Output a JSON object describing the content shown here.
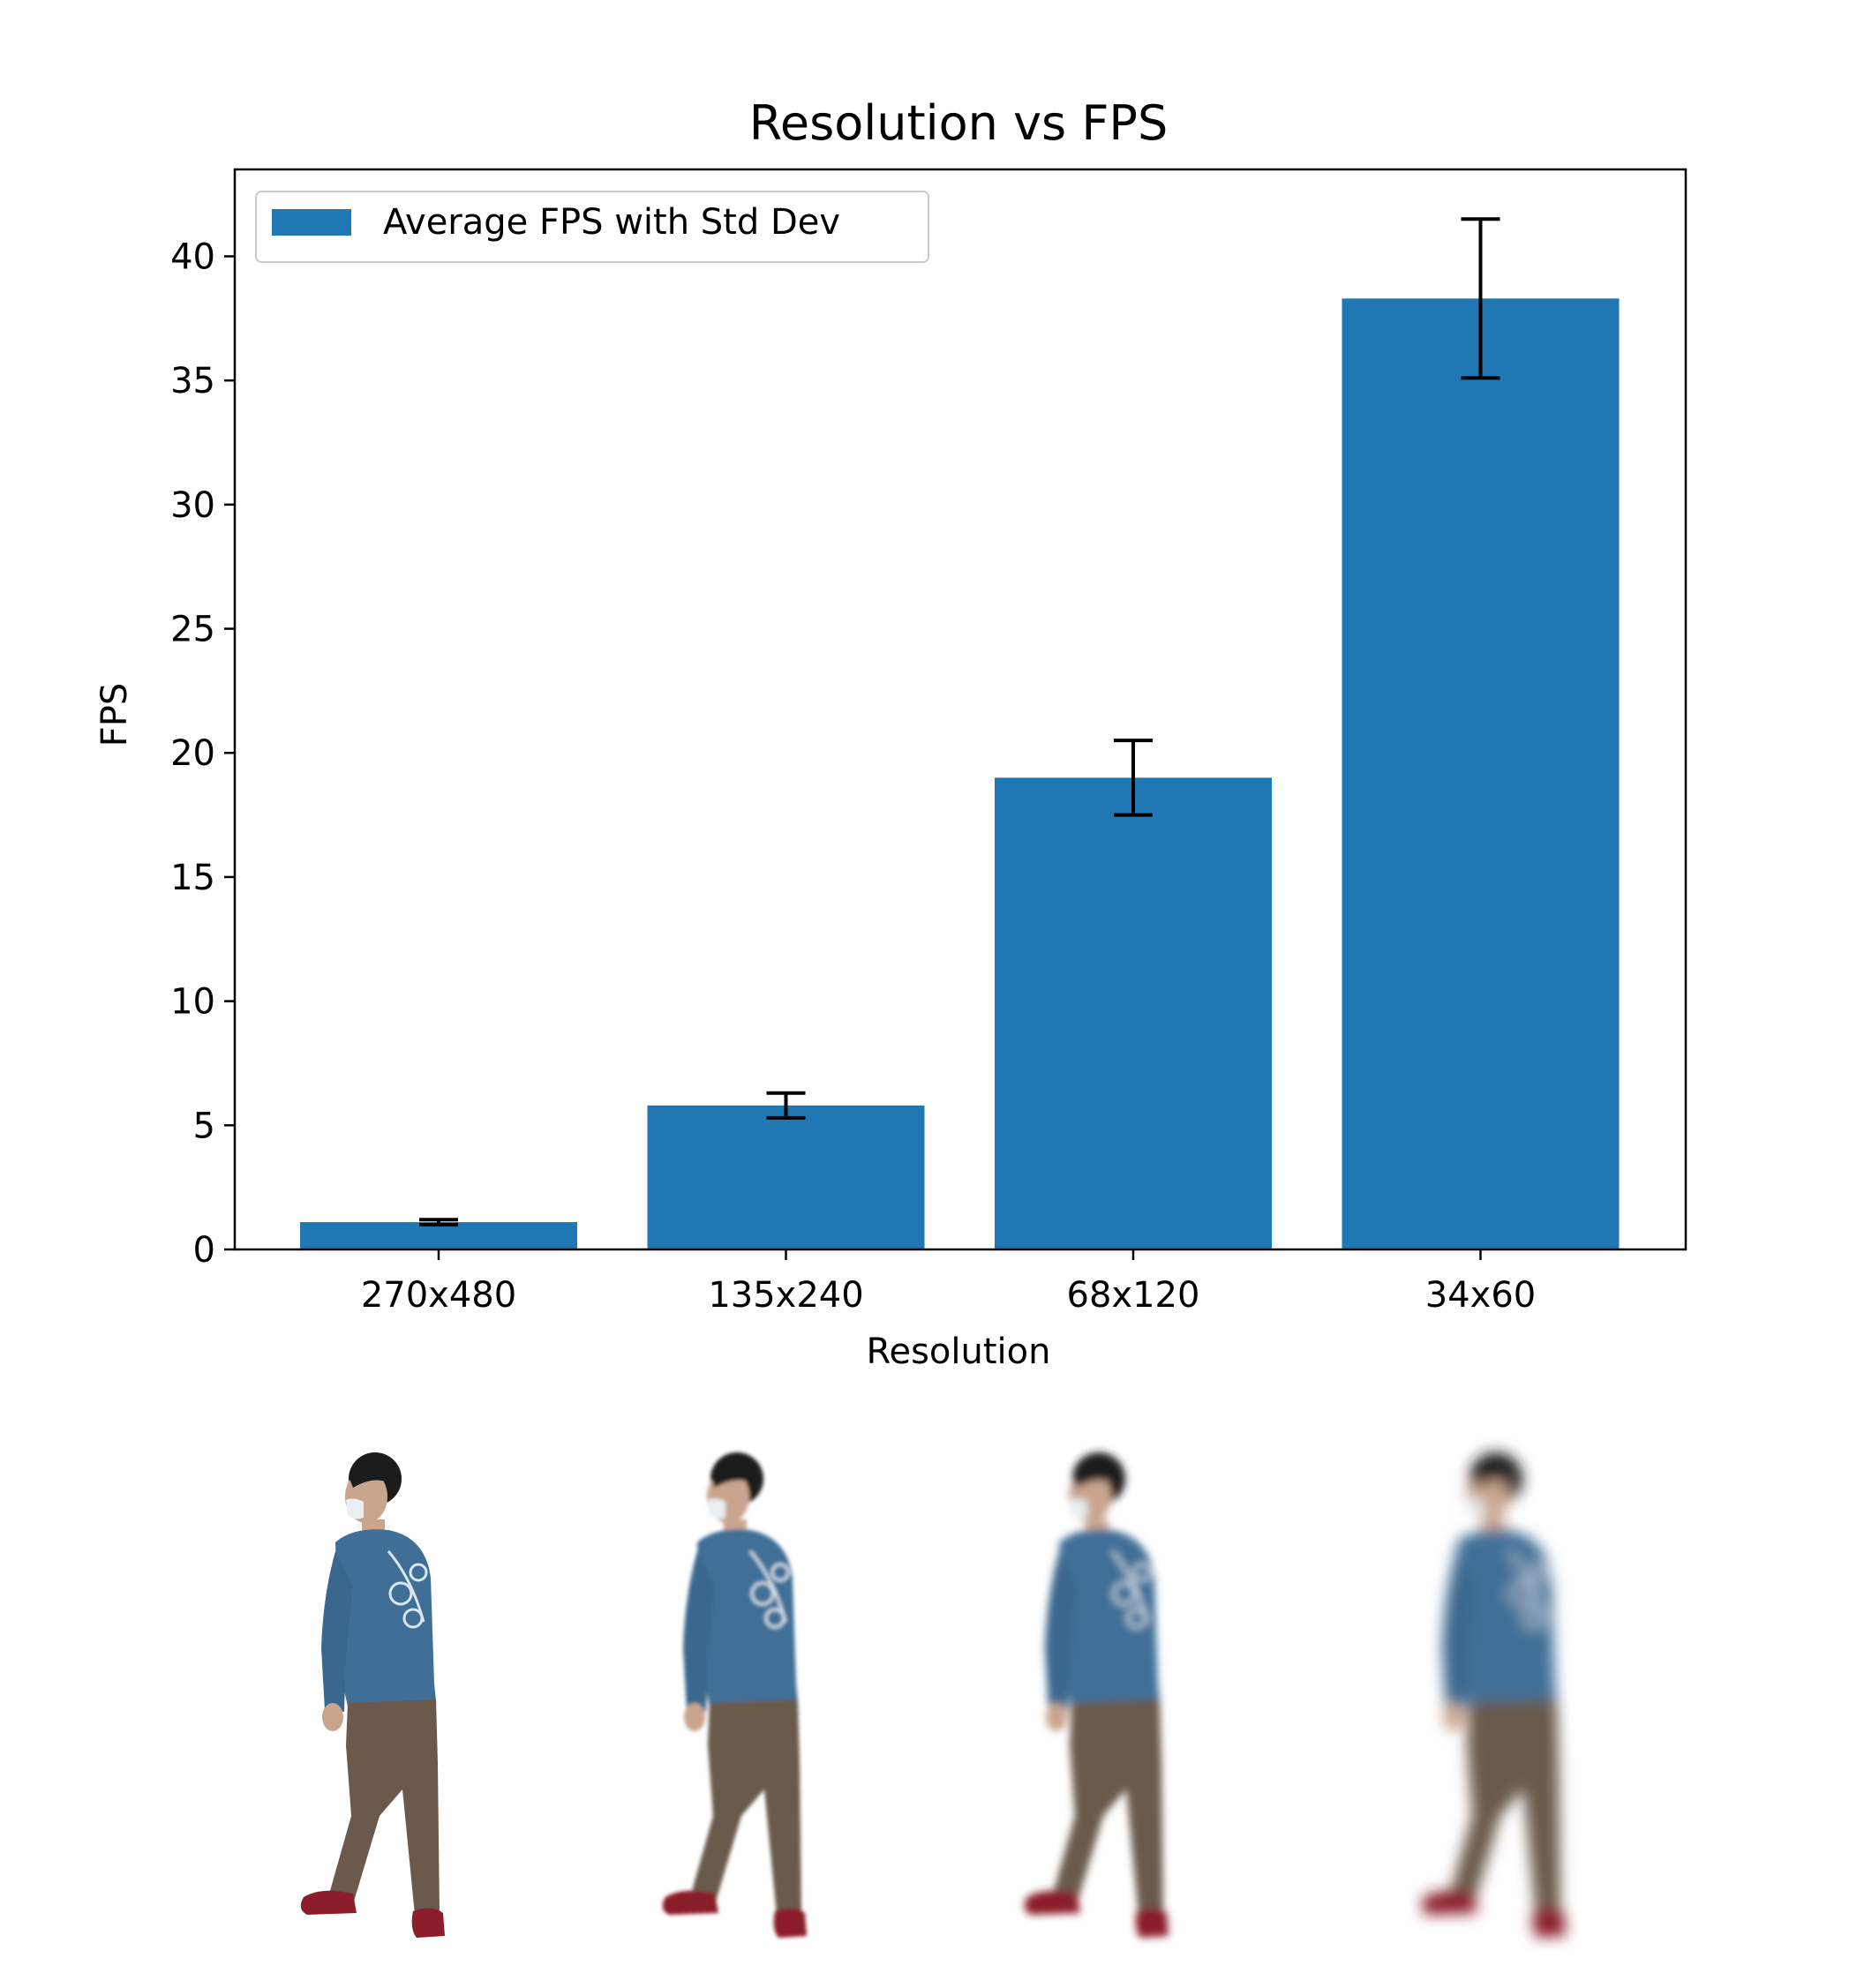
{
  "chart_data": {
    "type": "bar",
    "title": "Resolution vs FPS",
    "xlabel": "Resolution",
    "ylabel": "FPS",
    "categories": [
      "270x480",
      "135x240",
      "68x120",
      "34x60"
    ],
    "series": [
      {
        "name": "Average FPS with Std Dev",
        "values": [
          1.1,
          5.8,
          19.0,
          38.3
        ],
        "std_dev": [
          0.1,
          0.5,
          1.5,
          3.2
        ]
      }
    ],
    "ylim": [
      0,
      43.5
    ],
    "yticks": [
      0,
      5,
      10,
      15,
      20,
      25,
      30,
      35,
      40
    ],
    "grid": false,
    "legend_position": "top-left",
    "colors": {
      "bar": "#1f77b4",
      "error_bar": "#000000"
    }
  },
  "figures": {
    "description_icons": [
      "person-walking-sharp",
      "person-walking-soft",
      "person-walking-blurry",
      "person-walking-very-blurry"
    ],
    "colors": {
      "shirt": "#3f6f97",
      "pants": "#6b5a4c",
      "shoe": "#8b1e2a",
      "skin": "#c9a58e",
      "hair": "#1c1c1c"
    }
  }
}
